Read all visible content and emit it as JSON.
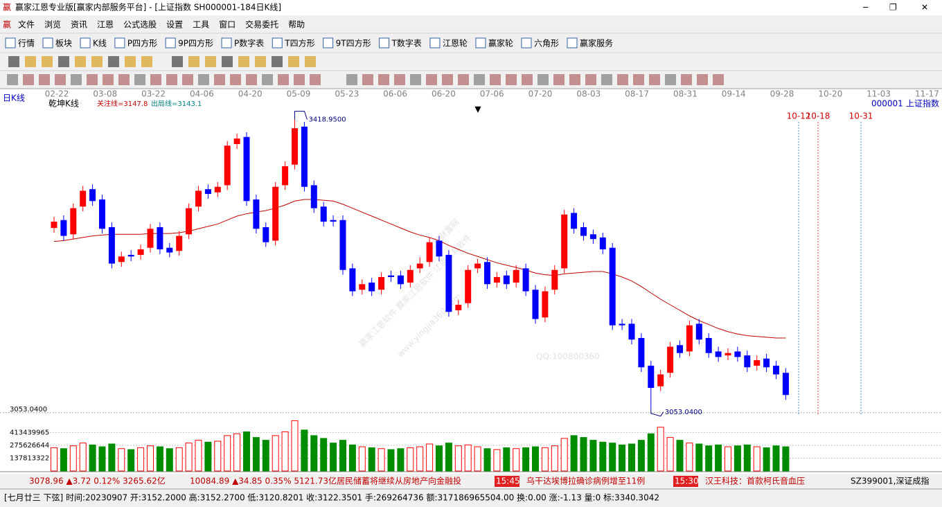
{
  "window": {
    "title": "赢家江恩专业版[赢家内部服务平台] - [上证指数  SH000001-184日K线]",
    "menu": [
      "文件",
      "浏览",
      "资讯",
      "江恩",
      "公式选股",
      "设置",
      "工具",
      "窗口",
      "交易委托",
      "帮助"
    ],
    "toolbar": [
      "行情",
      "板块",
      "K线",
      "P四方形",
      "9P四方形",
      "P数字表",
      "T四方形",
      "9T四方形",
      "T数字表",
      "江恩轮",
      "赢家轮",
      "六角形",
      "赢家服务"
    ]
  },
  "chart_data": {
    "type": "candlestick",
    "period_label": "日K线",
    "indicator_label": "乾坤K线",
    "legend": [
      "关注线=3147.8",
      "出局线=3143.1"
    ],
    "code": "000001",
    "name": "上证指数",
    "date_labels": [
      "02-22",
      "03-08",
      "03-22",
      "04-06",
      "04-20",
      "05-09",
      "05-23",
      "06-06",
      "06-20",
      "07-06",
      "07-20",
      "08-03",
      "08-17",
      "08-31",
      "09-14",
      "09-28",
      "10-20",
      "11-03",
      "11-17"
    ],
    "open": [
      3282,
      3292,
      3274,
      3309,
      3331,
      3318,
      3283,
      3239,
      3248,
      3248,
      3257,
      3283,
      3257,
      3253,
      3274,
      3309,
      3331,
      3327,
      3336,
      3388,
      3397,
      3318,
      3283,
      3266,
      3336,
      3362,
      3410,
      3336,
      3309,
      3292,
      3292,
      3231,
      3204,
      3213,
      3204,
      3222,
      3222,
      3213,
      3231,
      3239,
      3266,
      3248,
      3178,
      3187,
      3231,
      3239,
      3213,
      3222,
      3213,
      3231,
      3204,
      3169,
      3204,
      3231,
      3301,
      3283,
      3274,
      3270,
      3257,
      3161,
      3161,
      3143,
      3108,
      3082,
      3099,
      3134,
      3126,
      3161,
      3143,
      3126,
      3121,
      3126,
      3121,
      3108,
      3117,
      3108,
      3099
    ],
    "high": [
      3296,
      3298,
      3313,
      3335,
      3337,
      3324,
      3289,
      3252,
      3254,
      3261,
      3287,
      3289,
      3263,
      3278,
      3313,
      3335,
      3337,
      3340,
      3392,
      3401,
      3403,
      3324,
      3289,
      3340,
      3366,
      3418.95,
      3416,
      3342,
      3315,
      3298,
      3298,
      3237,
      3217,
      3219,
      3226,
      3228,
      3228,
      3235,
      3245,
      3270,
      3272,
      3254,
      3191,
      3235,
      3243,
      3245,
      3226,
      3228,
      3235,
      3237,
      3210,
      3208,
      3235,
      3305,
      3307,
      3289,
      3280,
      3276,
      3263,
      3167,
      3167,
      3149,
      3114,
      3103,
      3138,
      3140,
      3165,
      3167,
      3149,
      3132,
      3130,
      3132,
      3127,
      3121,
      3123,
      3114,
      3105
    ],
    "low": [
      3276,
      3266,
      3268,
      3303,
      3310,
      3275,
      3231,
      3233,
      3240,
      3242,
      3251,
      3249,
      3245,
      3247,
      3268,
      3303,
      3319,
      3321,
      3330,
      3382,
      3310,
      3275,
      3258,
      3260,
      3330,
      3356,
      3328,
      3301,
      3284,
      3284,
      3223,
      3196,
      3198,
      3196,
      3198,
      3214,
      3205,
      3207,
      3225,
      3233,
      3240,
      3170,
      3172,
      3181,
      3225,
      3205,
      3207,
      3205,
      3207,
      3196,
      3161,
      3163,
      3198,
      3225,
      3275,
      3266,
      3262,
      3249,
      3153,
      3153,
      3135,
      3100,
      3053.04,
      3076,
      3093,
      3118,
      3120,
      3135,
      3118,
      3113,
      3115,
      3113,
      3100,
      3102,
      3100,
      3091,
      3065
    ],
    "close": [
      3290,
      3272,
      3307,
      3329,
      3316,
      3281,
      3237,
      3246,
      3246,
      3255,
      3281,
      3255,
      3251,
      3272,
      3307,
      3329,
      3325,
      3334,
      3386,
      3395,
      3316,
      3281,
      3264,
      3334,
      3360,
      3408,
      3334,
      3307,
      3290,
      3290,
      3229,
      3202,
      3211,
      3202,
      3220,
      3220,
      3211,
      3229,
      3237,
      3264,
      3246,
      3176,
      3185,
      3229,
      3237,
      3211,
      3220,
      3211,
      3229,
      3202,
      3167,
      3202,
      3229,
      3299,
      3281,
      3272,
      3268,
      3255,
      3159,
      3159,
      3141,
      3106,
      3080,
      3097,
      3132,
      3124,
      3159,
      3141,
      3124,
      3119,
      3124,
      3119,
      3106,
      3115,
      3106,
      3097,
      3071
    ],
    "up_color": "#ff0000",
    "down_color": "#0000ff",
    "ylim": [
      3045,
      3430
    ],
    "yticks": [
      {
        "value": 3053.04,
        "label": "3053.0400"
      }
    ],
    "annotations": [
      {
        "value": 3418.95,
        "label": "3418.9500"
      },
      {
        "value": 3053.04,
        "label": "3053.0400"
      }
    ],
    "ma": {
      "color": "#c00000",
      "values": [
        3265,
        3266,
        3268,
        3270,
        3272,
        3273,
        3274,
        3274,
        3274,
        3274,
        3275,
        3275,
        3275,
        3276,
        3278,
        3281,
        3284,
        3287,
        3292,
        3297,
        3300,
        3302,
        3304,
        3307,
        3311,
        3316,
        3318,
        3318,
        3317,
        3316,
        3312,
        3307,
        3302,
        3297,
        3292,
        3287,
        3282,
        3277,
        3273,
        3270,
        3266,
        3260,
        3255,
        3250,
        3246,
        3242,
        3238,
        3235,
        3232,
        3229,
        3225,
        3223,
        3222,
        3224,
        3225,
        3226,
        3227,
        3227,
        3224,
        3220,
        3215,
        3208,
        3200,
        3192,
        3185,
        3178,
        3171,
        3165,
        3160,
        3155,
        3151,
        3148,
        3146,
        3145,
        3144,
        3143,
        3143
      ]
    },
    "volume": {
      "values": [
        250000000,
        240000000,
        270000000,
        300000000,
        280000000,
        260000000,
        290000000,
        240000000,
        230000000,
        250000000,
        270000000,
        260000000,
        240000000,
        250000000,
        300000000,
        330000000,
        310000000,
        320000000,
        380000000,
        400000000,
        420000000,
        360000000,
        330000000,
        380000000,
        420000000,
        540000000,
        440000000,
        380000000,
        350000000,
        300000000,
        330000000,
        280000000,
        260000000,
        250000000,
        240000000,
        230000000,
        240000000,
        250000000,
        260000000,
        290000000,
        270000000,
        300000000,
        270000000,
        280000000,
        260000000,
        240000000,
        230000000,
        250000000,
        240000000,
        250000000,
        260000000,
        250000000,
        270000000,
        350000000,
        380000000,
        360000000,
        330000000,
        310000000,
        300000000,
        280000000,
        290000000,
        330000000,
        400000000,
        470000000,
        360000000,
        330000000,
        300000000,
        290000000,
        270000000,
        280000000,
        260000000,
        270000000,
        280000000,
        260000000,
        250000000,
        270000000,
        260000000
      ],
      "ylim": [
        0,
        580000000
      ],
      "yticks": [
        137813322,
        275626644,
        413439965
      ],
      "up_color": "#ff0000",
      "down_color": "#008c00"
    },
    "future_dates": [
      "10-12",
      "10-18",
      "10-31"
    ],
    "watermarks": [
      "赢家财富网",
      "赢家江恩软件 赢家江恩软件 江恩工具软件",
      "www.yingjia360.com",
      "QQ:100800360"
    ]
  },
  "status": {
    "sh": "3078.96 ▲3.72 0.12% 3265.62亿",
    "sz": "10084.89 ▲34.85 0.35% 5121.73亿",
    "news": [
      "居民储蓄将继续从房地产向金融投",
      "乌干达埃博拉确诊病例增至11例",
      "汉王科技：首款柯氏音血压"
    ],
    "times": [
      "15:45",
      "15:30"
    ],
    "index": "SZ399001,深证成指",
    "info": "[七月廿三  下弦] 时间:20230907 开:3152.2000 高:3152.2700 低:3120.8201 收:3122.3501 手:269264736 额:317186965504.00 换:0.00 涨:-1.13 量:0 标:3340.3042"
  }
}
